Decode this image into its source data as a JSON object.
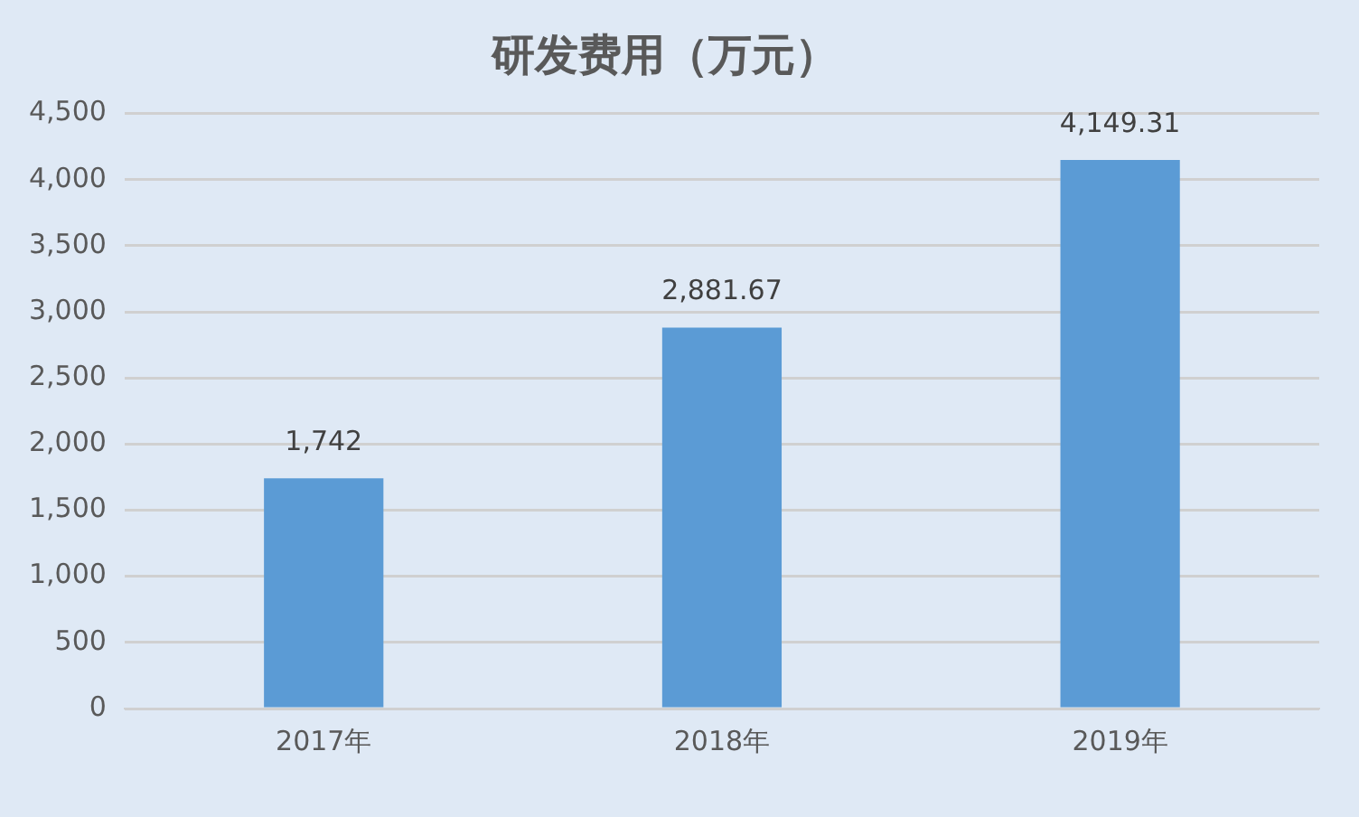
{
  "chart_data": {
    "type": "bar",
    "title": "研发费用（万元）",
    "categories": [
      "2017年",
      "2018年",
      "2019年"
    ],
    "values": [
      1742,
      2881.67,
      4149.31
    ],
    "value_labels": [
      "1,742",
      "2,881.67",
      "4,149.31"
    ],
    "color": "#5b9bd5",
    "ylim": [
      0,
      4500
    ],
    "yticks": [
      0,
      {
        "value": 500,
        "label": "500"
      },
      {
        "value": 1000,
        "label": "1,000"
      },
      {
        "value": 1500,
        "label": "1,500"
      },
      {
        "value": 2000,
        "label": "2,000"
      },
      {
        "value": 2500,
        "label": "2,500"
      },
      {
        "value": 3000,
        "label": "3,000"
      },
      {
        "value": 3500,
        "label": "3,500"
      },
      {
        "value": 4000,
        "label": "4,000"
      },
      {
        "value": 4500,
        "label": "4,500"
      }
    ],
    "grid": "y",
    "legend": false
  }
}
